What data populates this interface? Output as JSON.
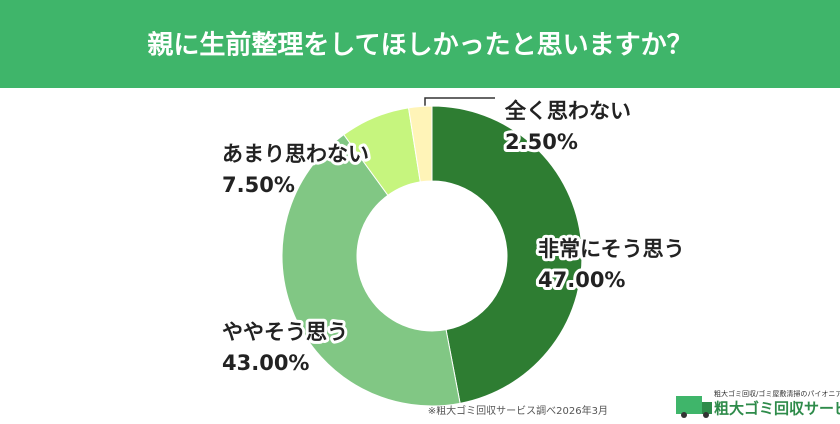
{
  "chart_data": {
    "type": "donut",
    "title": "親に生前整理をしてほしかったと思いますか？",
    "categories": [
      "非常にそう思う",
      "ややそう思う",
      "あまり思わない",
      "全く思わない"
    ],
    "values": [
      47,
      43,
      7.5,
      2.5
    ],
    "value_labels": [
      "47.00%",
      "43.00%",
      "7.50%",
      "2.50%"
    ],
    "colors": [
      "#2e7d32",
      "#81c784",
      "#c6f57e",
      "#fff4b8"
    ],
    "footnote": "※粗大ゴミ回収サービス調べ2026年3月",
    "logo_tagline": "粗大ゴミ回収/ゴミ屋敷清掃のパイオニア",
    "logo_name": "粗大ゴミ回収サービス"
  }
}
